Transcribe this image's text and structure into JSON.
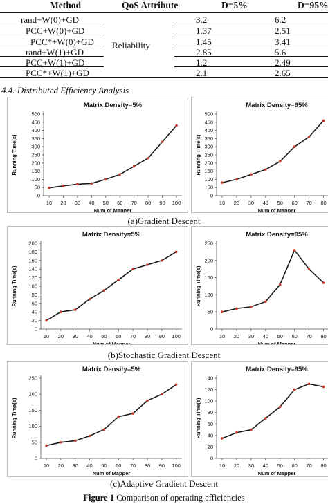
{
  "table": {
    "headers": [
      "Method",
      "QoS Attribute",
      "D=5%",
      "D=95%"
    ],
    "attribute": "Reliability",
    "rows": [
      {
        "method": "rand+W(0)+GD",
        "d5": "3.2",
        "d95": "6.2"
      },
      {
        "method": "PCC+W(0)+GD",
        "d5": "1.37",
        "d95": "2.51"
      },
      {
        "method": "PCC*+W(0)+GD",
        "d5": "1.45",
        "d95": "3.41"
      },
      {
        "method": "rand+W(1)+GD",
        "d5": "2.85",
        "d95": "5.6"
      },
      {
        "method": "PCC+W(1)+GD",
        "d5": "1.2",
        "d95": "2.49"
      },
      {
        "method": "PCC*+W(1)+GD",
        "d5": "2.1",
        "d95": "2.65"
      }
    ]
  },
  "section_title": "4.4.  Distributed Efficiency Analysis",
  "captions": {
    "a": "(a)Gradient Descent",
    "b": "(b)Stochastic Gradient Descent",
    "c": "(c)Adaptive Gradient Descent"
  },
  "figure_caption": {
    "label": "Figure 1",
    "text": "Comparison of operating efficiencies"
  },
  "chart_data": [
    {
      "id": "a5",
      "type": "line",
      "title": "Matrix Density=5%",
      "xlabel": "Num of Mapper",
      "ylabel": "Running Time(s)",
      "x": [
        10,
        20,
        30,
        40,
        50,
        60,
        70,
        80,
        90,
        100
      ],
      "ylim": [
        0,
        500
      ],
      "ystep": 50,
      "series": [
        {
          "values": [
            48,
            60,
            70,
            75,
            100,
            130,
            180,
            230,
            330,
            430
          ]
        }
      ],
      "line_color": "#1a1a1a",
      "marker_color": "#c0392b"
    },
    {
      "id": "a95",
      "type": "line",
      "title": "Matrix Density=95%",
      "xlabel": "Num of Mapper",
      "ylabel": "Running Time(s)",
      "x": [
        10,
        20,
        30,
        40,
        50,
        60,
        70,
        80
      ],
      "ylim": [
        0,
        500
      ],
      "ystep": 50,
      "series": [
        {
          "values": [
            80,
            100,
            130,
            160,
            210,
            300,
            360,
            460
          ]
        }
      ],
      "line_color": "#1a1a1a",
      "marker_color": "#c0392b"
    },
    {
      "id": "b5",
      "type": "line",
      "title": "Matrix Density=5%",
      "xlabel": "Num of Mapper",
      "ylabel": "Running Time(s)",
      "x": [
        10,
        20,
        30,
        40,
        50,
        60,
        70,
        80,
        90,
        100
      ],
      "ylim": [
        0,
        200
      ],
      "ystep": 20,
      "series": [
        {
          "values": [
            20,
            40,
            45,
            70,
            90,
            115,
            140,
            150,
            160,
            180
          ]
        }
      ],
      "line_color": "#1a1a1a",
      "marker_color": "#c0392b"
    },
    {
      "id": "b95",
      "type": "line",
      "title": "Matrix Density=95%",
      "xlabel": "Num of Mapper",
      "ylabel": "Running Time(s)",
      "x": [
        10,
        20,
        30,
        40,
        50,
        60,
        70,
        80
      ],
      "ylim": [
        0,
        250
      ],
      "ystep": 50,
      "series": [
        {
          "values": [
            50,
            60,
            65,
            80,
            130,
            230,
            175,
            135
          ]
        }
      ],
      "line_color": "#1a1a1a",
      "marker_color": "#c0392b"
    },
    {
      "id": "c5",
      "type": "line",
      "title": "Matrix Density=5%",
      "xlabel": "Num of Mapper",
      "ylabel": "Running Time(s)",
      "x": [
        10,
        20,
        30,
        40,
        50,
        60,
        70,
        80,
        90,
        100
      ],
      "ylim": [
        0,
        250
      ],
      "ystep": 50,
      "series": [
        {
          "values": [
            40,
            50,
            55,
            70,
            90,
            130,
            140,
            180,
            200,
            230
          ]
        }
      ],
      "line_color": "#1a1a1a",
      "marker_color": "#c0392b"
    },
    {
      "id": "c95",
      "type": "line",
      "title": "Matrix Density=95%",
      "xlabel": "Num of Mapper",
      "ylabel": "Running Time(s)",
      "x": [
        10,
        20,
        30,
        40,
        50,
        60,
        70,
        80
      ],
      "ylim": [
        0,
        140
      ],
      "ystep": 20,
      "series": [
        {
          "values": [
            35,
            45,
            50,
            70,
            90,
            120,
            130,
            125
          ]
        }
      ],
      "line_color": "#1a1a1a",
      "marker_color": "#c0392b"
    }
  ]
}
